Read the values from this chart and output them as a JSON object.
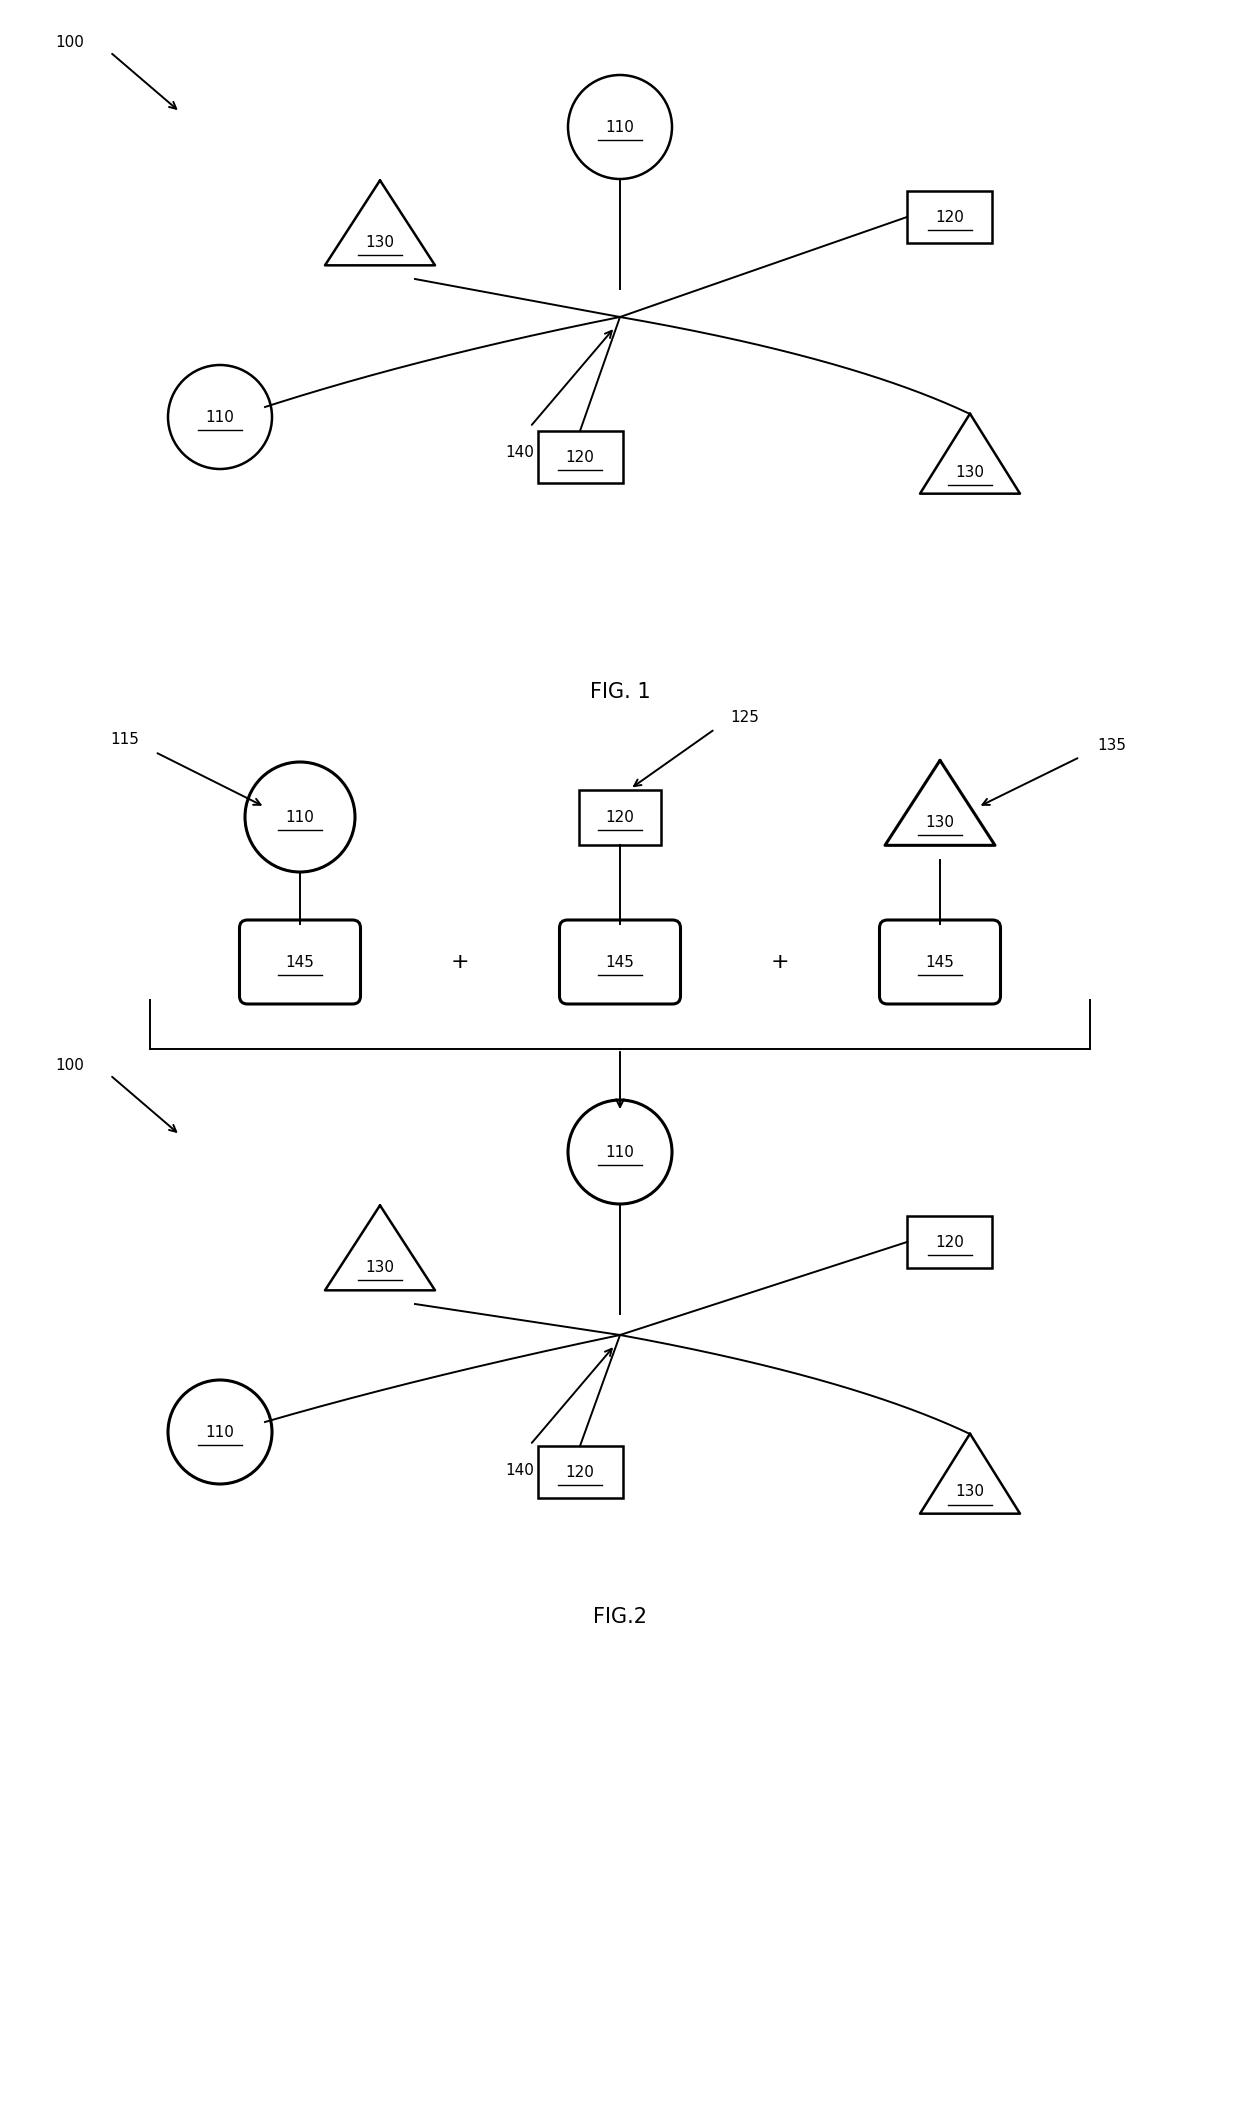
{
  "bg_color": "#ffffff",
  "line_color": "#000000",
  "fig1_title": "FIG. 1",
  "fig2_title": "FIG.2",
  "lw_thin": 1.4,
  "lw_thick": 2.2,
  "lw_shape": 1.8,
  "fontsize_label": 11,
  "fontsize_caption": 15,
  "fontsize_ref": 11
}
